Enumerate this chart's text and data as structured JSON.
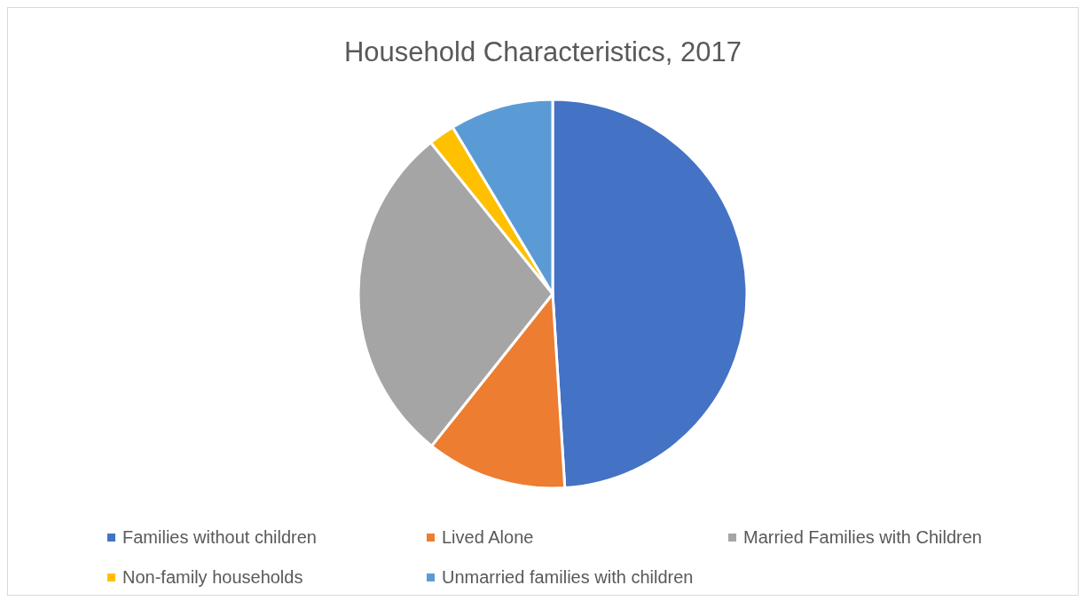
{
  "chart_data": {
    "type": "pie",
    "title": "Household Characteristics, 2017",
    "categories": [
      "Families without children",
      "Lived Alone",
      "Married Families with Children",
      "Non-family households",
      "Unmarried families with children"
    ],
    "values": [
      49,
      11.7,
      28.5,
      2.2,
      8.6
    ],
    "colors": [
      "#4472c4",
      "#ed7d31",
      "#a5a5a5",
      "#ffc000",
      "#5b9bd5"
    ],
    "legend": "bottom"
  }
}
